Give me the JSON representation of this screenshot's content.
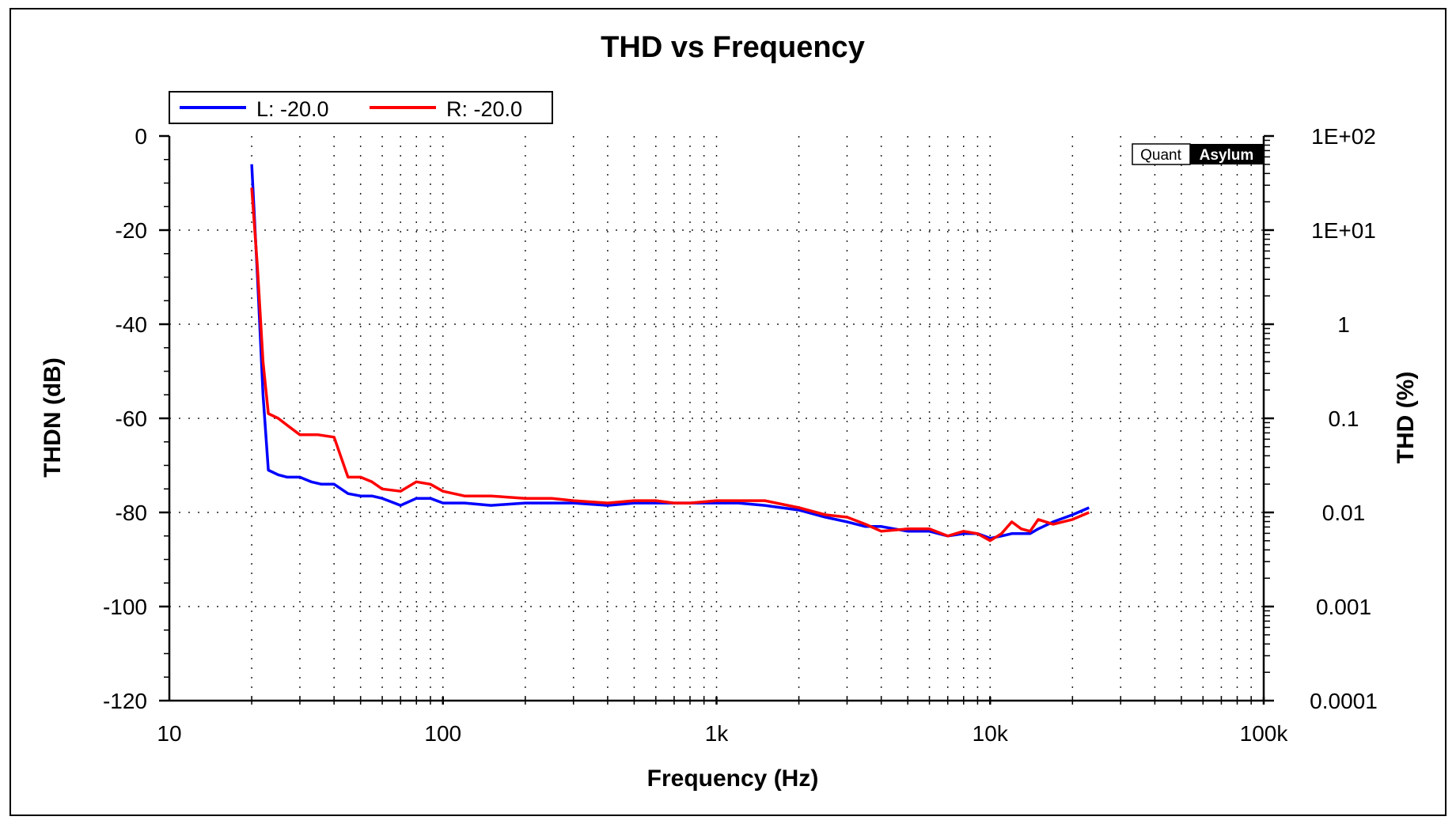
{
  "chart_data": {
    "type": "line",
    "title": "THD vs Frequency",
    "xlabel": "Frequency (Hz)",
    "ylabel": "THDN (dB)",
    "y2label": "THD (%)",
    "x_scale": "log",
    "xlim": [
      10,
      100000
    ],
    "ylim": [
      -120,
      0
    ],
    "x_ticks": [
      10,
      100,
      1000,
      10000,
      100000
    ],
    "x_tick_labels": [
      "10",
      "100",
      "1k",
      "10k",
      "100k"
    ],
    "y_ticks": [
      0,
      -20,
      -40,
      -60,
      -80,
      -100,
      -120
    ],
    "y_tick_labels": [
      "0",
      "-20",
      "-40",
      "-60",
      "-80",
      "-100",
      "-120"
    ],
    "y2_tick_labels": [
      "1E+02",
      "1E+01",
      "1",
      "0.1",
      "0.01",
      "0.001",
      "0.0001"
    ],
    "grid": true,
    "legend_position": "top-left",
    "watermark": [
      "Quant",
      "Asylum"
    ],
    "colors": {
      "L": "#0000ff",
      "R": "#ff0000"
    },
    "series": [
      {
        "name": "L: -20.0",
        "color": "#0000ff",
        "x": [
          20,
          21,
          22,
          23,
          25,
          27,
          30,
          33,
          36,
          40,
          45,
          50,
          55,
          60,
          70,
          80,
          90,
          100,
          120,
          150,
          200,
          250,
          300,
          400,
          500,
          600,
          700,
          800,
          1000,
          1200,
          1500,
          2000,
          2500,
          3000,
          3500,
          4000,
          5000,
          6000,
          7000,
          8000,
          9000,
          10000,
          11000,
          12000,
          13000,
          14000,
          15000,
          17000,
          20000,
          23000
        ],
        "y": [
          -6,
          -30,
          -55,
          -71,
          -72,
          -72.5,
          -72.5,
          -73.5,
          -74,
          -74,
          -76,
          -76.5,
          -76.5,
          -77,
          -78.5,
          -77,
          -77,
          -78,
          -78,
          -78.5,
          -78,
          -78,
          -78,
          -78.5,
          -78,
          -78,
          -78,
          -78,
          -78,
          -78,
          -78.5,
          -79.5,
          -81,
          -82,
          -83,
          -83,
          -84,
          -84,
          -85,
          -84.5,
          -84.5,
          -85.5,
          -85,
          -84.5,
          -84.5,
          -84.5,
          -83.5,
          -82,
          -80.5,
          -79
        ]
      },
      {
        "name": "R: -20.0",
        "color": "#ff0000",
        "x": [
          20,
          21,
          22,
          23,
          25,
          27,
          30,
          35,
          40,
          45,
          50,
          55,
          60,
          70,
          80,
          90,
          100,
          120,
          150,
          200,
          250,
          300,
          400,
          500,
          600,
          700,
          800,
          1000,
          1200,
          1500,
          2000,
          2500,
          3000,
          3500,
          4000,
          5000,
          6000,
          7000,
          8000,
          9000,
          10000,
          11000,
          12000,
          13000,
          14000,
          15000,
          17000,
          20000,
          23000
        ],
        "y": [
          -11,
          -28,
          -48,
          -59,
          -60,
          -61.5,
          -63.5,
          -63.5,
          -64,
          -72.5,
          -72.5,
          -73.5,
          -75,
          -75.5,
          -73.5,
          -74,
          -75.5,
          -76.5,
          -76.5,
          -77,
          -77,
          -77.5,
          -78,
          -77.5,
          -77.5,
          -78,
          -78,
          -77.5,
          -77.5,
          -77.5,
          -79,
          -80.5,
          -81,
          -82.5,
          -84,
          -83.5,
          -83.5,
          -85,
          -84,
          -84.5,
          -86,
          -84.5,
          -82,
          -83.5,
          -84,
          -81.5,
          -82.5,
          -81.5,
          -80
        ]
      }
    ]
  }
}
